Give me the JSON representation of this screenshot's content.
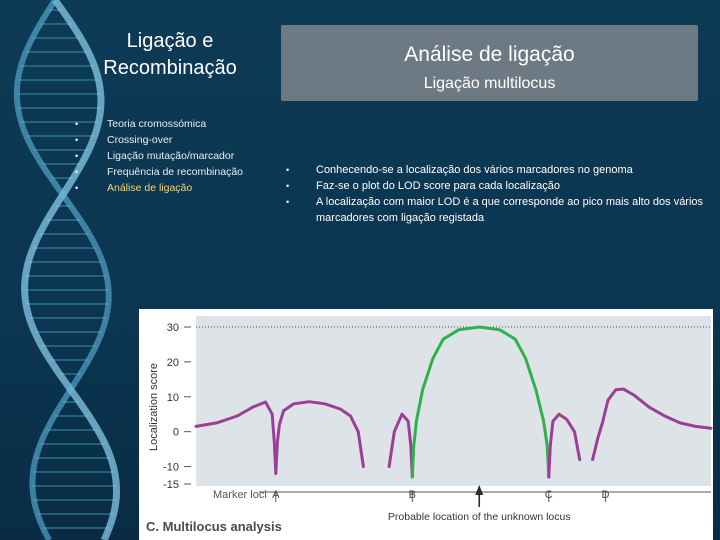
{
  "sidebar": {
    "title": "Ligação e Recombinação",
    "items": [
      {
        "label": "Teoria cromossómica",
        "active": false
      },
      {
        "label": "Crossing-over",
        "active": false
      },
      {
        "label": "Ligação mutação/marcador",
        "active": false
      },
      {
        "label": "Frequência de recombinação",
        "active": false
      },
      {
        "label": "Análise de ligação",
        "active": true
      }
    ]
  },
  "heading": {
    "title": "Análise de ligação",
    "subtitle": "Ligação multilocus"
  },
  "bullets": [
    "Conhecendo-se a localização dos vários marcadores no genoma",
    "Faz-se o plot do LOD score para cada localização",
    "A localização com maior LOD é a que corresponde ao pico mais alto dos vários marcadores com ligação registada"
  ],
  "colors": {
    "background": "#0d3a55",
    "heading_box": "#6d7a84",
    "active_item": "#f5d86b",
    "series_marker_intervals": "#9b3f96",
    "series_peak": "#2fb24a",
    "plot_background": "#dde3e6",
    "arrow": "#2b2b2b"
  },
  "figure": {
    "caption": "C. Multilocus analysis"
  },
  "chart_data": {
    "type": "line",
    "ylabel": "Localization score",
    "yticks": [
      30,
      20,
      10,
      0,
      -10,
      -15
    ],
    "ylim": [
      -15,
      30
    ],
    "grid": false,
    "reference_line": 30,
    "xlim": [
      0,
      100
    ],
    "markers_label": "Marker loci",
    "markers": [
      {
        "name": "A",
        "x": 15.5
      },
      {
        "name": "B",
        "x": 42
      },
      {
        "name": "C",
        "x": 68.5
      },
      {
        "name": "D",
        "x": 79.5
      }
    ],
    "arrow_x": 55,
    "arrow_label": "Probable location of the unknown locus",
    "series": [
      {
        "color": "#9b3f96",
        "points": [
          [
            0,
            1.5
          ],
          [
            4,
            2.5
          ],
          [
            8,
            4.5
          ],
          [
            11,
            7
          ],
          [
            13.5,
            8.5
          ],
          [
            14.8,
            5
          ],
          [
            15.2,
            -3
          ],
          [
            15.5,
            -12
          ],
          [
            15.8,
            -3
          ],
          [
            16.2,
            2
          ],
          [
            17,
            6
          ],
          [
            19,
            8
          ],
          [
            22,
            8.6
          ],
          [
            25,
            8
          ],
          [
            28,
            6.5
          ],
          [
            30,
            4.5
          ],
          [
            31.5,
            0
          ],
          [
            32.5,
            -10
          ]
        ]
      },
      {
        "color": "#9b3f96",
        "points": [
          [
            37.5,
            -10
          ],
          [
            38.5,
            0
          ],
          [
            40,
            5
          ],
          [
            41.2,
            3
          ],
          [
            41.7,
            -4
          ],
          [
            42,
            -13
          ]
        ]
      },
      {
        "color": "#2fb24a",
        "points": [
          [
            42,
            -13
          ],
          [
            42.3,
            -4
          ],
          [
            42.8,
            3
          ],
          [
            44,
            12
          ],
          [
            46,
            21
          ],
          [
            48,
            26.5
          ],
          [
            51,
            29.2
          ],
          [
            55,
            30
          ],
          [
            59,
            29.2
          ],
          [
            62,
            26.5
          ],
          [
            64,
            21
          ],
          [
            66,
            12
          ],
          [
            67.5,
            3
          ],
          [
            68.2,
            -4
          ],
          [
            68.5,
            -13
          ]
        ]
      },
      {
        "color": "#9b3f96",
        "points": [
          [
            68.5,
            -13
          ],
          [
            68.8,
            -4
          ],
          [
            69.3,
            3
          ],
          [
            70.5,
            5
          ],
          [
            72,
            3.5
          ],
          [
            73.5,
            0
          ],
          [
            74.5,
            -8
          ]
        ]
      },
      {
        "color": "#9b3f96",
        "points": [
          [
            77,
            -8
          ],
          [
            78,
            -2
          ],
          [
            79,
            3
          ],
          [
            79.5,
            6
          ],
          [
            80,
            9
          ],
          [
            81.5,
            12
          ],
          [
            83,
            12.2
          ],
          [
            85,
            10.5
          ],
          [
            88,
            7
          ],
          [
            91,
            4.5
          ],
          [
            94,
            2.5
          ],
          [
            97,
            1.5
          ],
          [
            100,
            1
          ]
        ]
      }
    ]
  }
}
